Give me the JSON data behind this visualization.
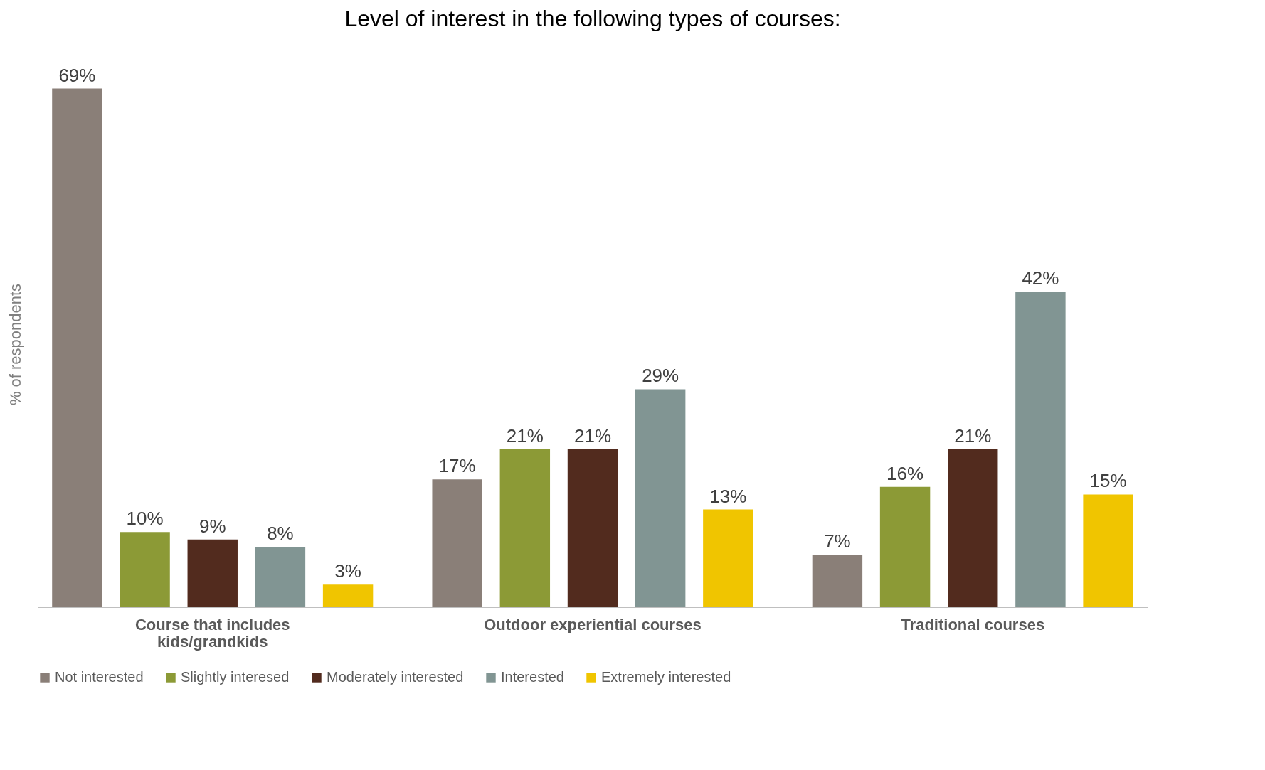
{
  "chart_data": {
    "type": "bar",
    "title": "Level of interest in the following  types of courses:",
    "ylabel": "% of respondents",
    "categories": [
      "Course that includes kids/grandkids",
      "Outdoor experiential courses",
      "Traditional courses"
    ],
    "series": [
      {
        "name": "Not interested",
        "color": "#8a7f78",
        "values": [
          69,
          17,
          7
        ],
        "value_labels": [
          "69%",
          "17%",
          "7%"
        ]
      },
      {
        "name": "Slightly interesed",
        "color": "#8c9a36",
        "values": [
          10,
          21,
          16
        ],
        "value_labels": [
          "10%",
          "21%",
          "16%"
        ]
      },
      {
        "name": "Moderately interested",
        "color": "#522b1e",
        "values": [
          9,
          21,
          21
        ],
        "value_labels": [
          "9%",
          "21%",
          "21%"
        ]
      },
      {
        "name": "Interested",
        "color": "#819593",
        "values": [
          8,
          29,
          42
        ],
        "value_labels": [
          "8%",
          "29%",
          "42%"
        ]
      },
      {
        "name": "Extremely interested",
        "color": "#f0c500",
        "values": [
          3,
          13,
          15
        ],
        "value_labels": [
          "3%",
          "13%",
          "15%"
        ]
      }
    ],
    "legend": "bottom",
    "grid": false
  }
}
